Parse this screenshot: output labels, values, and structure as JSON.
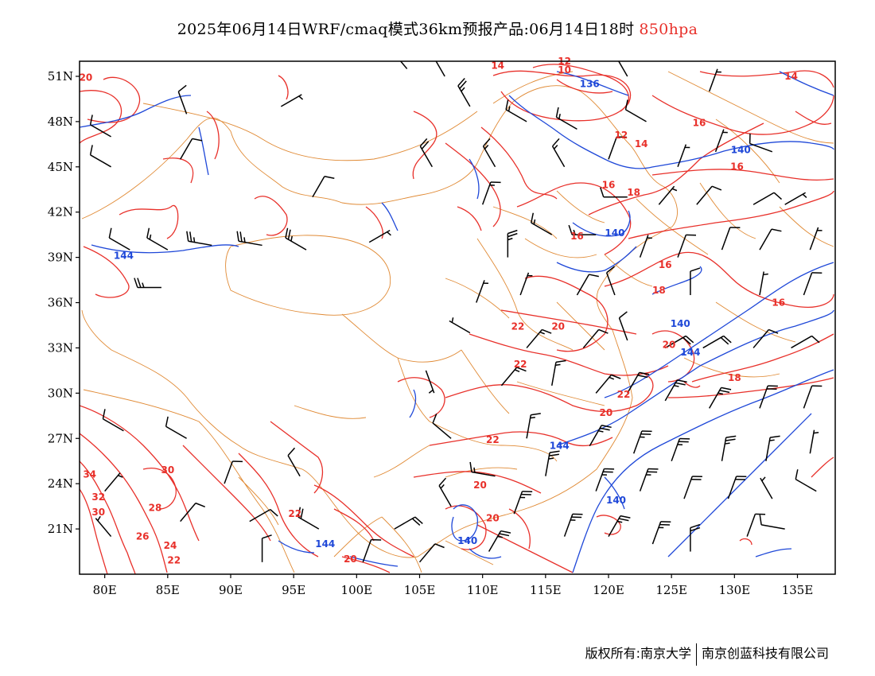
{
  "title": {
    "main": "2025年06月14日WRF/cmaq模式36km预报产品:06月14日18时",
    "level": "850hpa"
  },
  "footer": {
    "left": "版权所有:南京大学",
    "right": "南京创蓝科技有限公司"
  },
  "map": {
    "lon_range": [
      78,
      138
    ],
    "lat_range": [
      18,
      52
    ],
    "lat_ticks": [
      "51N",
      "48N",
      "45N",
      "42N",
      "39N",
      "36N",
      "33N",
      "30N",
      "27N",
      "24N",
      "21N"
    ],
    "lon_ticks": [
      "80E",
      "85E",
      "90E",
      "95E",
      "100E",
      "105E",
      "110E",
      "115E",
      "120E",
      "125E",
      "130E",
      "135E"
    ],
    "colors": {
      "temperature_contour": "#e8302a",
      "height_contour": "#1f48d8",
      "boundary": "#e08a35",
      "wind_barb": "#000000"
    },
    "temperature_labels": [
      {
        "text": "20",
        "lon": 78.5,
        "lat": 50.7
      },
      {
        "text": "14",
        "lon": 111.2,
        "lat": 51.5
      },
      {
        "text": "12",
        "lon": 116.5,
        "lat": 51.8
      },
      {
        "text": "10",
        "lon": 116.5,
        "lat": 51.2
      },
      {
        "text": "14",
        "lon": 134.5,
        "lat": 50.8
      },
      {
        "text": "16",
        "lon": 127.2,
        "lat": 47.7
      },
      {
        "text": "12",
        "lon": 121.0,
        "lat": 46.9
      },
      {
        "text": "14",
        "lon": 122.6,
        "lat": 46.3
      },
      {
        "text": "16",
        "lon": 130.2,
        "lat": 44.8
      },
      {
        "text": "18",
        "lon": 122.0,
        "lat": 43.1
      },
      {
        "text": "16",
        "lon": 120.0,
        "lat": 43.6
      },
      {
        "text": "16",
        "lon": 117.5,
        "lat": 40.2
      },
      {
        "text": "16",
        "lon": 124.5,
        "lat": 38.3
      },
      {
        "text": "18",
        "lon": 124.0,
        "lat": 36.6
      },
      {
        "text": "16",
        "lon": 133.5,
        "lat": 35.8
      },
      {
        "text": "22",
        "lon": 112.8,
        "lat": 34.2
      },
      {
        "text": "20",
        "lon": 116.0,
        "lat": 34.2
      },
      {
        "text": "22",
        "lon": 113.0,
        "lat": 31.7
      },
      {
        "text": "20",
        "lon": 124.8,
        "lat": 33.0
      },
      {
        "text": "18",
        "lon": 130.0,
        "lat": 30.8
      },
      {
        "text": "22",
        "lon": 121.2,
        "lat": 29.7
      },
      {
        "text": "20",
        "lon": 119.8,
        "lat": 28.5
      },
      {
        "text": "22",
        "lon": 110.8,
        "lat": 26.7
      },
      {
        "text": "20",
        "lon": 109.8,
        "lat": 23.7
      },
      {
        "text": "20",
        "lon": 110.8,
        "lat": 21.5
      },
      {
        "text": "34",
        "lon": 78.8,
        "lat": 24.4
      },
      {
        "text": "30",
        "lon": 85.0,
        "lat": 24.7
      },
      {
        "text": "32",
        "lon": 79.5,
        "lat": 22.9
      },
      {
        "text": "28",
        "lon": 84.0,
        "lat": 22.2
      },
      {
        "text": "30",
        "lon": 79.5,
        "lat": 21.9
      },
      {
        "text": "26",
        "lon": 83.0,
        "lat": 20.3
      },
      {
        "text": "24",
        "lon": 85.2,
        "lat": 19.7
      },
      {
        "text": "22",
        "lon": 85.5,
        "lat": 18.7
      },
      {
        "text": "22",
        "lon": 95.1,
        "lat": 21.8
      },
      {
        "text": "20",
        "lon": 99.5,
        "lat": 18.8
      }
    ],
    "height_labels": [
      {
        "text": "136",
        "lon": 118.5,
        "lat": 50.3
      },
      {
        "text": "140",
        "lon": 130.5,
        "lat": 45.9
      },
      {
        "text": "140",
        "lon": 120.5,
        "lat": 40.4
      },
      {
        "text": "144",
        "lon": 81.5,
        "lat": 38.9
      },
      {
        "text": "140",
        "lon": 125.7,
        "lat": 34.4
      },
      {
        "text": "144",
        "lon": 126.5,
        "lat": 32.5
      },
      {
        "text": "144",
        "lon": 116.1,
        "lat": 26.3
      },
      {
        "text": "140",
        "lon": 120.6,
        "lat": 22.7
      },
      {
        "text": "144",
        "lon": 97.5,
        "lat": 19.8
      },
      {
        "text": "140",
        "lon": 108.8,
        "lat": 20.0
      }
    ],
    "wind_barbs": [
      {
        "lon": 80.5,
        "lat": 45.0,
        "dir": 300,
        "speed": 10
      },
      {
        "lon": 80.5,
        "lat": 47.0,
        "dir": 300,
        "speed": 10
      },
      {
        "lon": 86.5,
        "lat": 48.5,
        "dir": 340,
        "speed": 10
      },
      {
        "lon": 86.0,
        "lat": 45.5,
        "dir": 30,
        "speed": 10
      },
      {
        "lon": 85.0,
        "lat": 39.5,
        "dir": 300,
        "speed": 15
      },
      {
        "lon": 82.0,
        "lat": 39.5,
        "dir": 300,
        "speed": 10
      },
      {
        "lon": 88.5,
        "lat": 39.8,
        "dir": 280,
        "speed": 25
      },
      {
        "lon": 92.5,
        "lat": 39.8,
        "dir": 280,
        "speed": 25
      },
      {
        "lon": 96.0,
        "lat": 39.5,
        "dir": 300,
        "speed": 25
      },
      {
        "lon": 84.5,
        "lat": 37.0,
        "dir": 270,
        "speed": 25
      },
      {
        "lon": 96.5,
        "lat": 43.0,
        "dir": 30,
        "speed": 10
      },
      {
        "lon": 101.0,
        "lat": 40.0,
        "dir": 60,
        "speed": 5
      },
      {
        "lon": 94.0,
        "lat": 49.0,
        "dir": 60,
        "speed": 5
      },
      {
        "lon": 104.0,
        "lat": 51.5,
        "dir": 320,
        "speed": 5
      },
      {
        "lon": 107.0,
        "lat": 51.0,
        "dir": 330,
        "speed": 5
      },
      {
        "lon": 109.0,
        "lat": 49.0,
        "dir": 330,
        "speed": 25
      },
      {
        "lon": 113.5,
        "lat": 48.0,
        "dir": 300,
        "speed": 15
      },
      {
        "lon": 117.5,
        "lat": 47.5,
        "dir": 300,
        "speed": 15
      },
      {
        "lon": 106.0,
        "lat": 45.0,
        "dir": 330,
        "speed": 20
      },
      {
        "lon": 111.0,
        "lat": 45.0,
        "dir": 330,
        "speed": 15
      },
      {
        "lon": 116.5,
        "lat": 45.0,
        "dir": 330,
        "speed": 15
      },
      {
        "lon": 120.0,
        "lat": 45.5,
        "dir": 20,
        "speed": 10
      },
      {
        "lon": 125.5,
        "lat": 45.0,
        "dir": 20,
        "speed": 5
      },
      {
        "lon": 128.5,
        "lat": 46.0,
        "dir": 20,
        "speed": 5
      },
      {
        "lon": 133.0,
        "lat": 46.0,
        "dir": 290,
        "speed": 10
      },
      {
        "lon": 123.0,
        "lat": 48.0,
        "dir": 300,
        "speed": 10
      },
      {
        "lon": 121.5,
        "lat": 51.0,
        "dir": 330,
        "speed": 5
      },
      {
        "lon": 128.0,
        "lat": 50.0,
        "dir": 20,
        "speed": 5
      },
      {
        "lon": 110.0,
        "lat": 42.5,
        "dir": 20,
        "speed": 15
      },
      {
        "lon": 112.0,
        "lat": 39.0,
        "dir": 0,
        "speed": 25
      },
      {
        "lon": 115.5,
        "lat": 40.5,
        "dir": 300,
        "speed": 15
      },
      {
        "lon": 119.0,
        "lat": 40.5,
        "dir": 270,
        "speed": 15
      },
      {
        "lon": 121.5,
        "lat": 43.0,
        "dir": 270,
        "speed": 10
      },
      {
        "lon": 124.0,
        "lat": 42.5,
        "dir": 40,
        "speed": 5
      },
      {
        "lon": 127.0,
        "lat": 42.5,
        "dir": 40,
        "speed": 10
      },
      {
        "lon": 131.5,
        "lat": 42.5,
        "dir": 60,
        "speed": 10
      },
      {
        "lon": 134.0,
        "lat": 42.5,
        "dir": 60,
        "speed": 5
      },
      {
        "lon": 122.5,
        "lat": 39.0,
        "dir": 20,
        "speed": 5
      },
      {
        "lon": 125.5,
        "lat": 39.0,
        "dir": 20,
        "speed": 10
      },
      {
        "lon": 129.0,
        "lat": 39.5,
        "dir": 20,
        "speed": 10
      },
      {
        "lon": 132.0,
        "lat": 39.5,
        "dir": 30,
        "speed": 10
      },
      {
        "lon": 136.0,
        "lat": 39.5,
        "dir": 20,
        "speed": 5
      },
      {
        "lon": 113.0,
        "lat": 36.5,
        "dir": 20,
        "speed": 5
      },
      {
        "lon": 117.5,
        "lat": 36.5,
        "dir": 30,
        "speed": 10
      },
      {
        "lon": 120.5,
        "lat": 36.5,
        "dir": 340,
        "speed": 10
      },
      {
        "lon": 126.5,
        "lat": 36.5,
        "dir": 0,
        "speed": 10
      },
      {
        "lon": 132.0,
        "lat": 36.5,
        "dir": 10,
        "speed": 5
      },
      {
        "lon": 135.5,
        "lat": 36.5,
        "dir": 20,
        "speed": 10
      },
      {
        "lon": 109.5,
        "lat": 36.0,
        "dir": 20,
        "speed": 5
      },
      {
        "lon": 109.0,
        "lat": 34.0,
        "dir": 300,
        "speed": 5
      },
      {
        "lon": 113.5,
        "lat": 33.0,
        "dir": 40,
        "speed": 15
      },
      {
        "lon": 118.0,
        "lat": 33.0,
        "dir": 40,
        "speed": 10
      },
      {
        "lon": 121.5,
        "lat": 33.5,
        "dir": 340,
        "speed": 10
      },
      {
        "lon": 124.5,
        "lat": 33.0,
        "dir": 60,
        "speed": 20
      },
      {
        "lon": 127.5,
        "lat": 33.0,
        "dir": 60,
        "speed": 20
      },
      {
        "lon": 131.5,
        "lat": 33.0,
        "dir": 40,
        "speed": 10
      },
      {
        "lon": 134.5,
        "lat": 33.0,
        "dir": 60,
        "speed": 10
      },
      {
        "lon": 105.5,
        "lat": 31.5,
        "dir": 160,
        "speed": 5
      },
      {
        "lon": 111.5,
        "lat": 30.5,
        "dir": 40,
        "speed": 15
      },
      {
        "lon": 115.5,
        "lat": 30.5,
        "dir": 10,
        "speed": 15
      },
      {
        "lon": 119.0,
        "lat": 30.0,
        "dir": 40,
        "speed": 15
      },
      {
        "lon": 121.5,
        "lat": 30.0,
        "dir": 30,
        "speed": 20
      },
      {
        "lon": 124.5,
        "lat": 29.5,
        "dir": 30,
        "speed": 25
      },
      {
        "lon": 128.0,
        "lat": 29.0,
        "dir": 30,
        "speed": 25
      },
      {
        "lon": 132.0,
        "lat": 29.0,
        "dir": 20,
        "speed": 20
      },
      {
        "lon": 135.5,
        "lat": 29.0,
        "dir": 20,
        "speed": 10
      },
      {
        "lon": 107.5,
        "lat": 27.0,
        "dir": 310,
        "speed": 10
      },
      {
        "lon": 113.5,
        "lat": 27.0,
        "dir": 10,
        "speed": 15
      },
      {
        "lon": 118.5,
        "lat": 26.5,
        "dir": 30,
        "speed": 25
      },
      {
        "lon": 122.0,
        "lat": 26.0,
        "dir": 20,
        "speed": 25
      },
      {
        "lon": 125.0,
        "lat": 25.5,
        "dir": 20,
        "speed": 25
      },
      {
        "lon": 129.0,
        "lat": 25.5,
        "dir": 10,
        "speed": 25
      },
      {
        "lon": 132.5,
        "lat": 25.5,
        "dir": 10,
        "speed": 15
      },
      {
        "lon": 136.0,
        "lat": 26.0,
        "dir": 10,
        "speed": 5
      },
      {
        "lon": 111.0,
        "lat": 24.5,
        "dir": 280,
        "speed": 15
      },
      {
        "lon": 115.0,
        "lat": 24.5,
        "dir": 10,
        "speed": 25
      },
      {
        "lon": 119.0,
        "lat": 23.5,
        "dir": 20,
        "speed": 25
      },
      {
        "lon": 122.5,
        "lat": 23.5,
        "dir": 20,
        "speed": 25
      },
      {
        "lon": 126.0,
        "lat": 23.0,
        "dir": 20,
        "speed": 20
      },
      {
        "lon": 129.5,
        "lat": 23.0,
        "dir": 20,
        "speed": 20
      },
      {
        "lon": 133.0,
        "lat": 23.0,
        "dir": 330,
        "speed": 5
      },
      {
        "lon": 136.5,
        "lat": 23.5,
        "dir": 300,
        "speed": 10
      },
      {
        "lon": 107.5,
        "lat": 22.5,
        "dir": 330,
        "speed": 15
      },
      {
        "lon": 112.5,
        "lat": 22.0,
        "dir": 20,
        "speed": 25
      },
      {
        "lon": 116.5,
        "lat": 20.5,
        "dir": 20,
        "speed": 25
      },
      {
        "lon": 120.0,
        "lat": 20.5,
        "dir": 30,
        "speed": 25
      },
      {
        "lon": 123.5,
        "lat": 20.0,
        "dir": 20,
        "speed": 25
      },
      {
        "lon": 126.5,
        "lat": 19.5,
        "dir": 0,
        "speed": 20
      },
      {
        "lon": 131.0,
        "lat": 20.5,
        "dir": 20,
        "speed": 10
      },
      {
        "lon": 134.0,
        "lat": 21.0,
        "dir": 280,
        "speed": 10
      },
      {
        "lon": 103.0,
        "lat": 21.0,
        "dir": 60,
        "speed": 20
      },
      {
        "lon": 97.0,
        "lat": 21.0,
        "dir": 300,
        "speed": 20
      },
      {
        "lon": 91.5,
        "lat": 21.5,
        "dir": 60,
        "speed": 10
      },
      {
        "lon": 86.0,
        "lat": 21.5,
        "dir": 40,
        "speed": 10
      },
      {
        "lon": 80.5,
        "lat": 20.5,
        "dir": 320,
        "speed": 5
      },
      {
        "lon": 80.0,
        "lat": 23.5,
        "dir": 40,
        "speed": 5
      },
      {
        "lon": 89.5,
        "lat": 24.0,
        "dir": 20,
        "speed": 10
      },
      {
        "lon": 95.5,
        "lat": 24.5,
        "dir": 330,
        "speed": 10
      },
      {
        "lon": 92.5,
        "lat": 18.8,
        "dir": 0,
        "speed": 10
      },
      {
        "lon": 100.5,
        "lat": 18.8,
        "dir": 20,
        "speed": 10
      },
      {
        "lon": 105.0,
        "lat": 18.8,
        "dir": 40,
        "speed": 10
      },
      {
        "lon": 110.5,
        "lat": 19.5,
        "dir": 30,
        "speed": 25
      },
      {
        "lon": 81.5,
        "lat": 27.5,
        "dir": 300,
        "speed": 10
      },
      {
        "lon": 86.5,
        "lat": 27.0,
        "dir": 300,
        "speed": 10
      }
    ]
  }
}
